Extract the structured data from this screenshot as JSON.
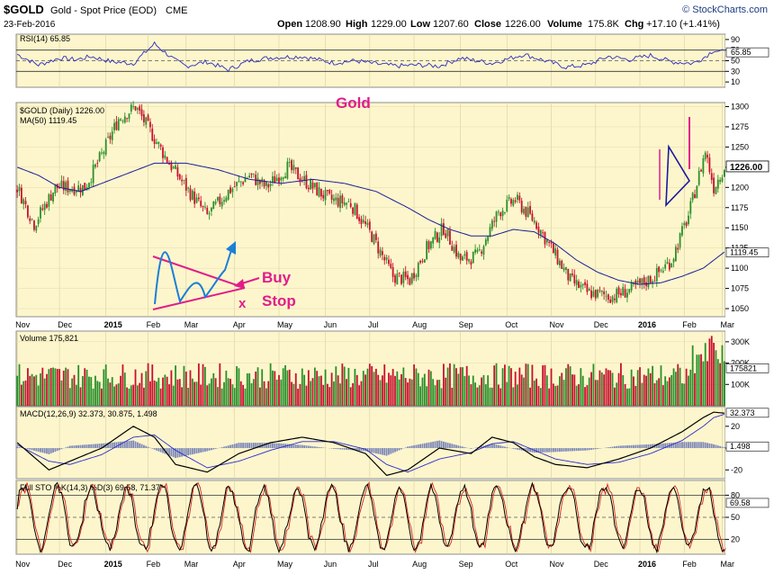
{
  "header": {
    "symbol": "$GOLD",
    "description": "Gold - Spot Price (EOD)",
    "exchange": "CME",
    "date": "23-Feb-2016",
    "watermark": "© StockCharts.com",
    "ohlc": {
      "open_label": "Open",
      "open": "1208.90",
      "high_label": "High",
      "high": "1229.00",
      "low_label": "Low",
      "low": "1207.60",
      "close_label": "Close",
      "close": "1226.00",
      "volume_label": "Volume",
      "volume": "175.8K",
      "chg_label": "Chg",
      "chg": "+17.10 (+1.41%)"
    }
  },
  "annotations": {
    "title": "Gold",
    "buy": "Buy",
    "stop": "Stop",
    "x": "x"
  },
  "colors": {
    "panel_bg": "#fdf6cc",
    "up": "#2a8f2a",
    "down": "#c8102e",
    "ma": "#1c1c9c",
    "rsi": "#2c2cc0",
    "annotation": "#e21c8a",
    "blue_annot": "#1a7fd8",
    "pennant": "#1a1a9c"
  },
  "chart_data": [
    {
      "panel": "rsi",
      "type": "line",
      "title": "RSI(14) 65.85",
      "ylim": [
        0,
        100
      ],
      "ticks": [
        "90",
        "70",
        "50",
        "30",
        "10"
      ],
      "last_label": "65.85",
      "series": [
        {
          "name": "RSI(14)",
          "x": [
            0,
            10,
            20,
            28,
            35,
            45,
            55,
            65,
            75,
            80,
            90,
            100,
            110,
            120,
            135,
            150,
            160,
            170,
            180,
            190,
            200,
            210,
            225,
            240,
            250,
            260,
            270,
            280,
            290,
            300,
            310,
            320,
            325,
            330,
            335
          ],
          "values": [
            62,
            42,
            55,
            52,
            58,
            48,
            45,
            82,
            50,
            40,
            48,
            33,
            50,
            56,
            58,
            46,
            50,
            44,
            40,
            42,
            40,
            55,
            45,
            62,
            50,
            38,
            42,
            58,
            52,
            60,
            48,
            45,
            55,
            70,
            66
          ]
        }
      ]
    },
    {
      "panel": "price",
      "type": "candlestick",
      "title": "$GOLD (Daily) 1226.00",
      "ma_label": "MA(50) 1119.45",
      "ylim": [
        1040,
        1305
      ],
      "ticks": [
        "1300",
        "1275",
        "1250",
        "1225",
        "1200",
        "1175",
        "1150",
        "1125",
        "1100",
        "1075",
        "1050"
      ],
      "last_label": "1226.00",
      "ma_last_label": "1119.45",
      "x_labels": [
        "Nov",
        "Dec",
        "2015",
        "Feb",
        "Mar",
        "Apr",
        "May",
        "Jun",
        "Jul",
        "Aug",
        "Sep",
        "Oct",
        "Nov",
        "Dec",
        "2016",
        "Feb",
        "Mar"
      ],
      "price_anchors": {
        "x": [
          0,
          8,
          18,
          32,
          40,
          48,
          56,
          64,
          72,
          80,
          90,
          100,
          110,
          118,
          128,
          140,
          148,
          158,
          168,
          178,
          186,
          194,
          202,
          210,
          218,
          228,
          236,
          246,
          254,
          262,
          270,
          282,
          292,
          302,
          310,
          318,
          326,
          330,
          335
        ],
        "values": [
          1200,
          1155,
          1200,
          1200,
          1240,
          1285,
          1300,
          1265,
          1230,
          1200,
          1165,
          1195,
          1215,
          1200,
          1225,
          1200,
          1185,
          1180,
          1140,
          1090,
          1085,
          1125,
          1150,
          1110,
          1115,
          1170,
          1185,
          1155,
          1120,
          1085,
          1070,
          1065,
          1075,
          1090,
          1110,
          1165,
          1245,
          1200,
          1226
        ]
      },
      "ma_anchors": {
        "x": [
          0,
          10,
          20,
          30,
          40,
          55,
          65,
          80,
          95,
          110,
          125,
          140,
          155,
          170,
          185,
          195,
          205,
          215,
          225,
          235,
          245,
          255,
          265,
          275,
          285,
          295,
          305,
          315,
          325,
          335
        ],
        "values": [
          1225,
          1215,
          1200,
          1195,
          1205,
          1220,
          1230,
          1230,
          1222,
          1210,
          1205,
          1210,
          1205,
          1195,
          1175,
          1160,
          1148,
          1140,
          1140,
          1148,
          1145,
          1130,
          1110,
          1095,
          1085,
          1080,
          1082,
          1090,
          1100,
          1120
        ]
      }
    },
    {
      "panel": "volume",
      "type": "bar",
      "title": "Volume 175,821",
      "ticks": [
        "300K",
        "200K",
        "100K"
      ],
      "last_label": "175821",
      "ylim": [
        0,
        350000
      ]
    },
    {
      "panel": "macd",
      "type": "line",
      "title": "MACD(12,26,9) 32.373, 30.875, 1.498",
      "ticks": [
        "20",
        "0",
        "-20"
      ],
      "last_label": "32.373",
      "last_label2": "1.498",
      "ylim": [
        -28,
        38
      ],
      "series": [
        {
          "name": "MACD",
          "x": [
            0,
            15,
            25,
            40,
            55,
            65,
            75,
            90,
            105,
            120,
            135,
            150,
            165,
            175,
            185,
            200,
            215,
            225,
            235,
            245,
            255,
            270,
            285,
            300,
            315,
            325,
            330,
            335
          ],
          "values": [
            5,
            -20,
            -12,
            0,
            20,
            10,
            -15,
            -22,
            -5,
            5,
            10,
            5,
            -5,
            -25,
            -20,
            0,
            -5,
            10,
            5,
            -8,
            -15,
            -18,
            -10,
            0,
            15,
            28,
            33,
            32
          ]
        },
        {
          "name": "Signal",
          "x": [
            0,
            15,
            25,
            40,
            55,
            65,
            75,
            90,
            105,
            120,
            135,
            150,
            165,
            175,
            185,
            200,
            215,
            225,
            235,
            245,
            255,
            270,
            285,
            300,
            315,
            325,
            330,
            335
          ],
          "values": [
            3,
            -12,
            -15,
            -6,
            10,
            12,
            -2,
            -18,
            -12,
            -2,
            6,
            6,
            -1,
            -15,
            -22,
            -10,
            -4,
            4,
            6,
            -2,
            -10,
            -15,
            -13,
            -5,
            7,
            20,
            28,
            31
          ]
        }
      ]
    },
    {
      "panel": "stochastic",
      "type": "line",
      "title": "Full STO %K(14,3) %D(3) 69.58, 71.37",
      "ticks": [
        "80",
        "50",
        "20"
      ],
      "last_label": "69.58",
      "ylim": [
        0,
        100
      ]
    }
  ],
  "bottom_x_labels": [
    "Nov",
    "Dec",
    "2015",
    "Feb",
    "Mar",
    "Apr",
    "May",
    "Jun",
    "Jul",
    "Aug",
    "Sep",
    "Oct",
    "Nov",
    "Dec",
    "2016",
    "Feb",
    "Mar"
  ]
}
